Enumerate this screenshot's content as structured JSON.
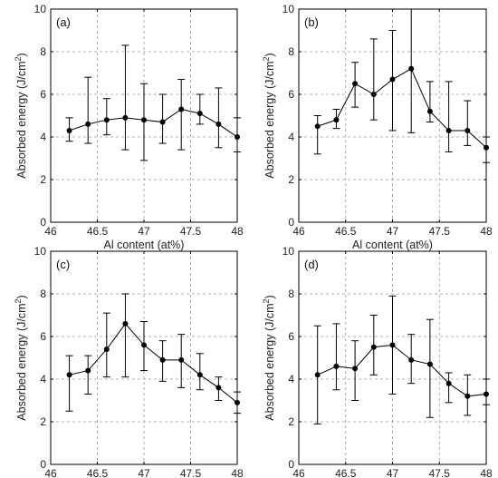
{
  "chart_data": [
    {
      "type": "line",
      "panel_label": "(a)",
      "xlabel": "Al content (at%)",
      "ylabel_main": "Absorbed energy (J/cm",
      "ylabel_sup": "2",
      "ylabel_close": ")",
      "xlim": [
        46,
        48
      ],
      "ylim": [
        0,
        10
      ],
      "xticks": [
        46,
        46.5,
        47,
        47.5,
        48
      ],
      "xtick_labels": [
        "46",
        "46.5",
        "47",
        "47.5",
        "48"
      ],
      "yticks": [
        0,
        2,
        4,
        6,
        8,
        10
      ],
      "ytick_labels": [
        "0",
        "2",
        "4",
        "6",
        "8",
        "10"
      ],
      "grid": true,
      "x": [
        46.2,
        46.4,
        46.6,
        46.8,
        47.0,
        47.2,
        47.4,
        47.6,
        47.8,
        48.0
      ],
      "y": [
        4.3,
        4.6,
        4.8,
        4.9,
        4.8,
        4.7,
        5.3,
        5.1,
        4.6,
        4.0
      ],
      "err_low": [
        3.8,
        3.7,
        4.1,
        3.4,
        2.9,
        3.7,
        3.4,
        4.6,
        3.5,
        3.3
      ],
      "err_high": [
        4.9,
        6.8,
        5.8,
        8.3,
        6.5,
        6.0,
        6.7,
        6.0,
        6.3,
        4.9
      ]
    },
    {
      "type": "line",
      "panel_label": "(b)",
      "xlabel": "Al content (at%)",
      "ylabel_main": "Absorbed energy (J/cm",
      "ylabel_sup": "2",
      "ylabel_close": ")",
      "xlim": [
        46,
        48
      ],
      "ylim": [
        0,
        10
      ],
      "xticks": [
        46,
        46.5,
        47,
        47.5,
        48
      ],
      "xtick_labels": [
        "46",
        "46.5",
        "47",
        "47.5",
        "48"
      ],
      "yticks": [
        0,
        2,
        4,
        6,
        8,
        10
      ],
      "ytick_labels": [
        "0",
        "2",
        "4",
        "6",
        "8",
        "10"
      ],
      "grid": true,
      "x": [
        46.2,
        46.4,
        46.6,
        46.8,
        47.0,
        47.2,
        47.4,
        47.6,
        47.8,
        48.0
      ],
      "y": [
        4.5,
        4.8,
        6.5,
        6.0,
        6.7,
        7.2,
        5.2,
        4.3,
        4.3,
        3.5
      ],
      "err_low": [
        3.2,
        4.4,
        5.4,
        4.8,
        4.3,
        4.2,
        4.7,
        3.3,
        3.6,
        2.8
      ],
      "err_high": [
        5.0,
        5.3,
        7.5,
        8.6,
        9.0,
        10.0,
        6.6,
        6.6,
        5.7,
        4.0
      ]
    },
    {
      "type": "line",
      "panel_label": "(c)",
      "xlabel": "Al content (at%)",
      "ylabel_main": "Absorbed energy (J/cm",
      "ylabel_sup": "2",
      "ylabel_close": ")",
      "xlim": [
        46,
        48
      ],
      "ylim": [
        0,
        10
      ],
      "xticks": [
        46,
        46.5,
        47,
        47.5,
        48
      ],
      "xtick_labels": [
        "46",
        "46.5",
        "47",
        "47.5",
        "48"
      ],
      "yticks": [
        0,
        2,
        4,
        6,
        8,
        10
      ],
      "ytick_labels": [
        "0",
        "2",
        "4",
        "6",
        "8",
        "10"
      ],
      "grid": true,
      "x": [
        46.2,
        46.4,
        46.6,
        46.8,
        47.0,
        47.2,
        47.4,
        47.6,
        47.8,
        48.0
      ],
      "y": [
        4.2,
        4.4,
        5.4,
        6.6,
        5.6,
        4.9,
        4.9,
        4.2,
        3.6,
        2.9
      ],
      "err_low": [
        2.5,
        3.3,
        4.1,
        4.1,
        4.4,
        3.9,
        3.6,
        3.5,
        3.0,
        2.4
      ],
      "err_high": [
        5.1,
        5.1,
        7.1,
        8.0,
        6.7,
        5.8,
        6.1,
        5.2,
        4.1,
        3.4
      ]
    },
    {
      "type": "line",
      "panel_label": "(d)",
      "xlabel": "Al content (at%)",
      "ylabel_main": "Absorbed energy (J/cm",
      "ylabel_sup": "2",
      "ylabel_close": ")",
      "xlim": [
        46,
        48
      ],
      "ylim": [
        0,
        10
      ],
      "xticks": [
        46,
        46.5,
        47,
        47.5,
        48
      ],
      "xtick_labels": [
        "46",
        "46.5",
        "47",
        "47.5",
        "48"
      ],
      "yticks": [
        0,
        2,
        4,
        6,
        8,
        10
      ],
      "ytick_labels": [
        "0",
        "2",
        "4",
        "6",
        "8",
        "10"
      ],
      "grid": true,
      "x": [
        46.2,
        46.4,
        46.6,
        46.8,
        47.0,
        47.2,
        47.4,
        47.6,
        47.8,
        48.0
      ],
      "y": [
        4.2,
        4.6,
        4.5,
        5.5,
        5.6,
        4.9,
        4.7,
        3.8,
        3.2,
        3.3
      ],
      "err_low": [
        1.9,
        3.5,
        3.0,
        4.2,
        3.3,
        3.8,
        2.2,
        2.9,
        2.3,
        2.8
      ],
      "err_high": [
        6.5,
        6.6,
        5.8,
        7.0,
        7.9,
        6.1,
        6.8,
        4.3,
        4.2,
        4.0
      ]
    }
  ]
}
